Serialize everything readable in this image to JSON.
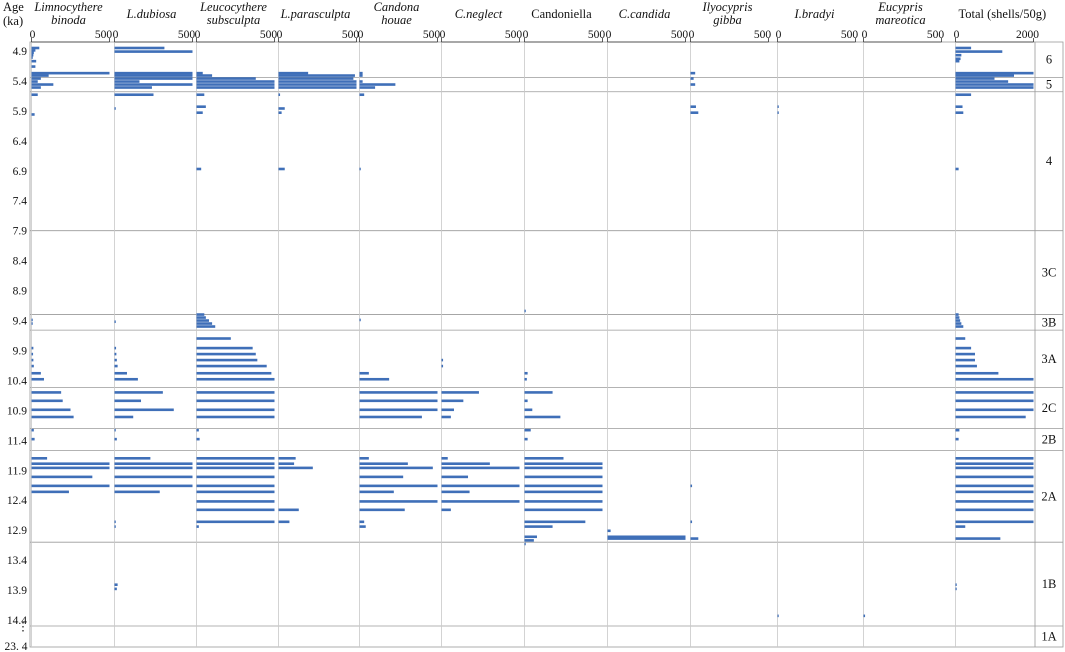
{
  "chart_data": {
    "type": "bar",
    "orientation": "horizontal",
    "y_axis": {
      "label_line1": "Age",
      "label_line2": "(ka)",
      "ticks": [
        "4.9",
        "5.4",
        "5.9",
        "6.4",
        "6.9",
        "7.4",
        "7.9",
        "8.4",
        "8.9",
        "9.4",
        "9.9",
        "10.4",
        "10.9",
        "11.4",
        "11.9",
        "12.4",
        "12.9",
        "13.4",
        "13.9",
        "14.4"
      ],
      "ylim": [
        4.75,
        14.85
      ],
      "bottom_label_top": "⋮",
      "bottom_label": "23. 4"
    },
    "zones": [
      {
        "label": "6",
        "from": 4.75,
        "to": 5.34
      },
      {
        "label": "5",
        "from": 5.34,
        "to": 5.58
      },
      {
        "label": "4",
        "from": 5.58,
        "to": 7.9
      },
      {
        "label": "3C",
        "from": 7.9,
        "to": 9.3
      },
      {
        "label": "3B",
        "from": 9.3,
        "to": 9.56
      },
      {
        "label": "3A",
        "from": 9.56,
        "to": 10.52
      },
      {
        "label": "2C",
        "from": 10.52,
        "to": 11.2
      },
      {
        "label": "2B",
        "from": 11.2,
        "to": 11.57
      },
      {
        "label": "2A",
        "from": 11.57,
        "to": 13.1
      },
      {
        "label": "1B",
        "from": 13.1,
        "to": 14.5
      },
      {
        "label": "1A",
        "from": 14.5,
        "to": 14.85
      }
    ],
    "panels": [
      {
        "title": [
          "Limnocythere",
          "binoda"
        ],
        "italic": true,
        "xlim": [
          0,
          500
        ],
        "tick_labels": [
          "0",
          "500"
        ],
        "bars": [
          [
            4.85,
            50
          ],
          [
            4.89,
            25
          ],
          [
            4.93,
            15
          ],
          [
            4.97,
            12
          ],
          [
            5.01,
            8
          ],
          [
            5.07,
            30
          ],
          [
            5.16,
            25
          ],
          [
            5.27,
            500
          ],
          [
            5.31,
            110
          ],
          [
            5.36,
            60
          ],
          [
            5.41,
            40
          ],
          [
            5.46,
            140
          ],
          [
            5.51,
            60
          ],
          [
            5.63,
            40
          ],
          [
            5.96,
            20
          ],
          [
            9.39,
            8
          ],
          [
            9.45,
            5
          ],
          [
            9.86,
            12
          ],
          [
            9.96,
            10
          ],
          [
            10.06,
            12
          ],
          [
            10.16,
            15
          ],
          [
            10.28,
            60
          ],
          [
            10.38,
            80
          ],
          [
            10.6,
            190
          ],
          [
            10.74,
            200
          ],
          [
            10.89,
            250
          ],
          [
            11.01,
            270
          ],
          [
            11.23,
            15
          ],
          [
            11.38,
            20
          ],
          [
            11.7,
            100
          ],
          [
            11.79,
            500
          ],
          [
            11.86,
            500
          ],
          [
            12.01,
            390
          ],
          [
            12.16,
            500
          ],
          [
            12.26,
            240
          ]
        ]
      },
      {
        "title": [
          "L.dubiosa"
        ],
        "italic": true,
        "xlim": [
          0,
          500
        ],
        "tick_labels": [
          "0",
          "500"
        ],
        "bars": [
          [
            4.85,
            320
          ],
          [
            4.91,
            500
          ],
          [
            5.27,
            500
          ],
          [
            5.31,
            500
          ],
          [
            5.36,
            500
          ],
          [
            5.41,
            160
          ],
          [
            5.46,
            500
          ],
          [
            5.51,
            240
          ],
          [
            5.63,
            250
          ],
          [
            5.86,
            8
          ],
          [
            9.42,
            8
          ],
          [
            9.86,
            10
          ],
          [
            9.96,
            12
          ],
          [
            10.06,
            15
          ],
          [
            10.16,
            20
          ],
          [
            10.28,
            80
          ],
          [
            10.38,
            150
          ],
          [
            10.6,
            310
          ],
          [
            10.74,
            170
          ],
          [
            10.89,
            380
          ],
          [
            11.01,
            120
          ],
          [
            11.23,
            8
          ],
          [
            11.38,
            15
          ],
          [
            11.7,
            230
          ],
          [
            11.79,
            500
          ],
          [
            11.86,
            500
          ],
          [
            12.01,
            500
          ],
          [
            12.16,
            500
          ],
          [
            12.26,
            290
          ],
          [
            12.76,
            8
          ],
          [
            12.84,
            8
          ],
          [
            13.81,
            20
          ],
          [
            13.88,
            15
          ]
        ]
      },
      {
        "title": [
          "Leucocythere",
          "subsculpta"
        ],
        "italic": true,
        "xlim": [
          0,
          500
        ],
        "tick_labels": [
          "0",
          "500"
        ],
        "bars": [
          [
            5.27,
            40
          ],
          [
            5.31,
            100
          ],
          [
            5.36,
            380
          ],
          [
            5.41,
            500
          ],
          [
            5.46,
            500
          ],
          [
            5.51,
            500
          ],
          [
            5.63,
            50
          ],
          [
            5.83,
            60
          ],
          [
            5.93,
            40
          ],
          [
            6.87,
            30
          ],
          [
            9.3,
            50
          ],
          [
            9.35,
            60
          ],
          [
            9.4,
            80
          ],
          [
            9.45,
            100
          ],
          [
            9.5,
            120
          ],
          [
            9.7,
            220
          ],
          [
            9.86,
            360
          ],
          [
            9.96,
            380
          ],
          [
            10.06,
            390
          ],
          [
            10.16,
            450
          ],
          [
            10.28,
            480
          ],
          [
            10.38,
            500
          ],
          [
            10.6,
            500
          ],
          [
            10.74,
            500
          ],
          [
            10.89,
            500
          ],
          [
            11.01,
            500
          ],
          [
            11.23,
            15
          ],
          [
            11.38,
            20
          ],
          [
            11.7,
            500
          ],
          [
            11.79,
            500
          ],
          [
            11.86,
            500
          ],
          [
            12.01,
            500
          ],
          [
            12.16,
            500
          ],
          [
            12.26,
            500
          ],
          [
            12.42,
            500
          ],
          [
            12.56,
            500
          ],
          [
            12.76,
            500
          ],
          [
            12.84,
            15
          ]
        ]
      },
      {
        "title": [
          "L.parasculpta"
        ],
        "italic": true,
        "xlim": [
          0,
          500
        ],
        "tick_labels": [
          "0",
          "500"
        ],
        "bars": [
          [
            5.27,
            190
          ],
          [
            5.31,
            490
          ],
          [
            5.36,
            480
          ],
          [
            5.41,
            500
          ],
          [
            5.46,
            500
          ],
          [
            5.51,
            500
          ],
          [
            5.63,
            10
          ],
          [
            5.86,
            40
          ],
          [
            5.93,
            20
          ],
          [
            6.87,
            40
          ],
          [
            11.7,
            110
          ],
          [
            11.79,
            100
          ],
          [
            11.86,
            220
          ],
          [
            12.56,
            130
          ],
          [
            12.76,
            70
          ]
        ]
      },
      {
        "title": [
          "Candona",
          "houae"
        ],
        "italic": true,
        "xlim": [
          0,
          500
        ],
        "tick_labels": [
          "0",
          "500"
        ],
        "bars": [
          [
            5.27,
            20
          ],
          [
            5.31,
            20
          ],
          [
            5.41,
            20
          ],
          [
            5.46,
            230
          ],
          [
            5.51,
            100
          ],
          [
            5.63,
            30
          ],
          [
            6.87,
            8
          ],
          [
            9.39,
            8
          ],
          [
            10.28,
            60
          ],
          [
            10.38,
            190
          ],
          [
            10.6,
            500
          ],
          [
            10.74,
            500
          ],
          [
            10.89,
            500
          ],
          [
            11.01,
            400
          ],
          [
            11.7,
            60
          ],
          [
            11.79,
            310
          ],
          [
            11.86,
            470
          ],
          [
            12.01,
            280
          ],
          [
            12.16,
            500
          ],
          [
            12.26,
            220
          ],
          [
            12.42,
            500
          ],
          [
            12.56,
            290
          ],
          [
            12.76,
            30
          ],
          [
            12.84,
            40
          ]
        ]
      },
      {
        "title": [
          "C.neglect"
        ],
        "italic": true,
        "xlim": [
          0,
          500
        ],
        "tick_labels": [
          "0",
          "500"
        ],
        "bars": [
          [
            10.06,
            10
          ],
          [
            10.16,
            10
          ],
          [
            10.6,
            240
          ],
          [
            10.74,
            140
          ],
          [
            10.89,
            80
          ],
          [
            11.01,
            60
          ],
          [
            11.7,
            40
          ],
          [
            11.79,
            310
          ],
          [
            11.86,
            500
          ],
          [
            12.01,
            170
          ],
          [
            12.16,
            500
          ],
          [
            12.26,
            180
          ],
          [
            12.42,
            500
          ],
          [
            12.56,
            60
          ]
        ]
      },
      {
        "title": [
          "Candoniella"
        ],
        "italic": false,
        "xlim": [
          0,
          500
        ],
        "tick_labels": [
          "0",
          "500"
        ],
        "bars": [
          [
            9.24,
            8
          ],
          [
            10.28,
            20
          ],
          [
            10.38,
            15
          ],
          [
            10.6,
            180
          ],
          [
            10.74,
            20
          ],
          [
            10.89,
            50
          ],
          [
            11.01,
            230
          ],
          [
            11.23,
            40
          ],
          [
            11.38,
            20
          ],
          [
            11.7,
            250
          ],
          [
            11.79,
            500
          ],
          [
            11.86,
            500
          ],
          [
            12.01,
            500
          ],
          [
            12.16,
            500
          ],
          [
            12.26,
            500
          ],
          [
            12.42,
            500
          ],
          [
            12.56,
            500
          ],
          [
            12.76,
            390
          ],
          [
            12.84,
            180
          ],
          [
            13.01,
            80
          ],
          [
            13.07,
            60
          ],
          [
            13.13,
            8
          ]
        ]
      },
      {
        "title": [
          "C.candida"
        ],
        "italic": true,
        "xlim": [
          0,
          500
        ],
        "tick_labels": [
          "0",
          "500"
        ],
        "bars": [
          [
            12.91,
            20
          ],
          [
            13.01,
            500
          ],
          [
            13.04,
            500
          ]
        ]
      },
      {
        "title": [
          "Ilyocypris",
          "gibba"
        ],
        "italic": true,
        "xlim": [
          0,
          500
        ],
        "tick_labels": [
          "0",
          "500"
        ],
        "bars": [
          [
            5.27,
            30
          ],
          [
            5.36,
            20
          ],
          [
            5.46,
            30
          ],
          [
            5.83,
            35
          ],
          [
            5.93,
            50
          ],
          [
            12.16,
            10
          ],
          [
            12.76,
            10
          ],
          [
            13.04,
            50
          ]
        ]
      },
      {
        "title": [
          "I.bradyi"
        ],
        "italic": true,
        "xlim": [
          0,
          500
        ],
        "tick_labels": [
          "0",
          "500"
        ],
        "bars": [
          [
            5.83,
            8
          ],
          [
            5.93,
            8
          ],
          [
            14.33,
            6
          ]
        ]
      },
      {
        "title": [
          "Eucypris",
          "mareotica"
        ],
        "italic": true,
        "xlim": [
          0,
          500
        ],
        "tick_labels": [
          "0",
          "500"
        ],
        "bars": [
          [
            14.33,
            10
          ]
        ]
      },
      {
        "title": [
          "Total (shells/50g)"
        ],
        "italic": false,
        "xlim": [
          0,
          2000
        ],
        "tick_labels": [
          "0",
          "2000"
        ],
        "bars": [
          [
            4.85,
            400
          ],
          [
            4.91,
            1200
          ],
          [
            4.97,
            150
          ],
          [
            5.03,
            130
          ],
          [
            5.07,
            100
          ],
          [
            5.27,
            2000
          ],
          [
            5.31,
            1500
          ],
          [
            5.36,
            1000
          ],
          [
            5.41,
            1350
          ],
          [
            5.46,
            2000
          ],
          [
            5.51,
            2000
          ],
          [
            5.63,
            400
          ],
          [
            5.83,
            180
          ],
          [
            5.93,
            200
          ],
          [
            6.87,
            80
          ],
          [
            9.3,
            80
          ],
          [
            9.35,
            100
          ],
          [
            9.4,
            120
          ],
          [
            9.45,
            150
          ],
          [
            9.5,
            200
          ],
          [
            9.7,
            250
          ],
          [
            9.86,
            400
          ],
          [
            9.96,
            500
          ],
          [
            10.06,
            500
          ],
          [
            10.16,
            550
          ],
          [
            10.28,
            1100
          ],
          [
            10.38,
            2000
          ],
          [
            10.6,
            2000
          ],
          [
            10.74,
            2000
          ],
          [
            10.89,
            2000
          ],
          [
            11.01,
            1800
          ],
          [
            11.23,
            100
          ],
          [
            11.38,
            80
          ],
          [
            11.7,
            2000
          ],
          [
            11.79,
            2000
          ],
          [
            11.86,
            2000
          ],
          [
            12.01,
            2000
          ],
          [
            12.16,
            2000
          ],
          [
            12.26,
            2000
          ],
          [
            12.42,
            2000
          ],
          [
            12.56,
            2000
          ],
          [
            12.76,
            2000
          ],
          [
            12.84,
            250
          ],
          [
            13.04,
            1150
          ],
          [
            13.81,
            30
          ],
          [
            13.88,
            20
          ]
        ]
      }
    ]
  }
}
